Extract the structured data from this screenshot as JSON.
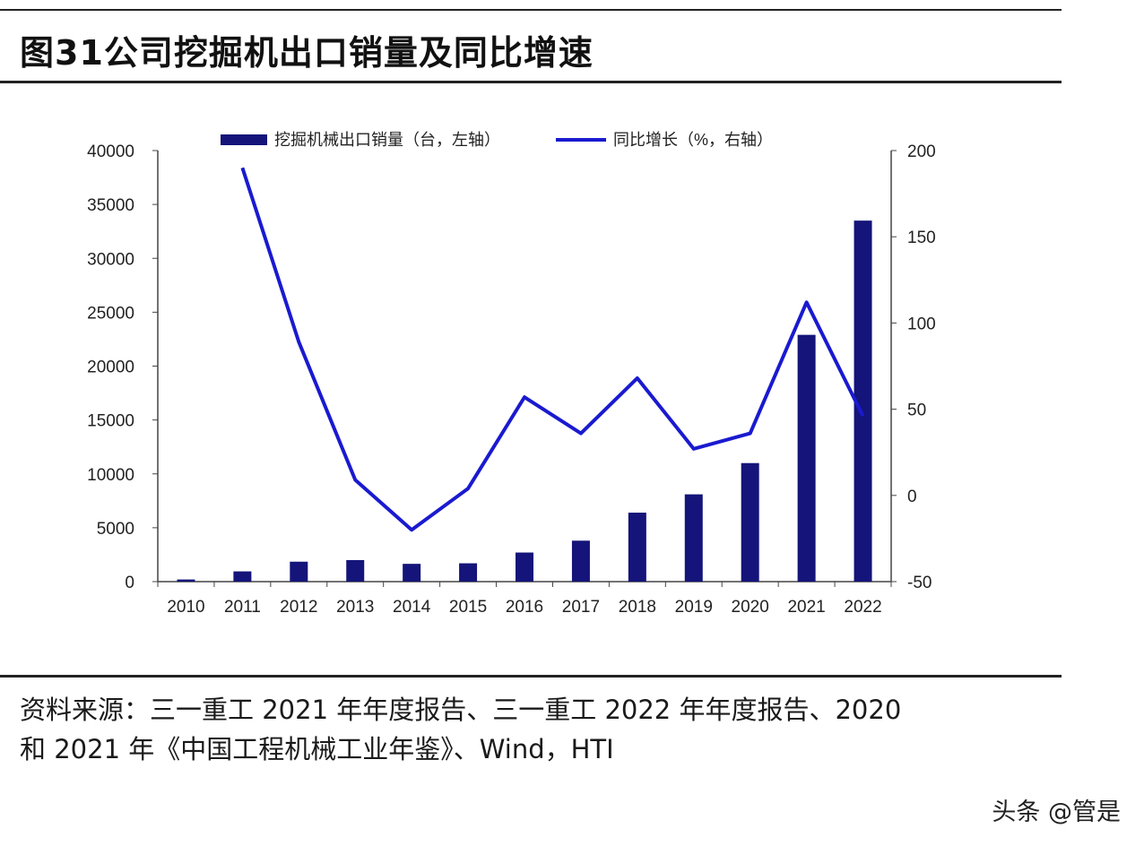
{
  "header": {
    "title": "图31公司挖掘机出口销量及同比增速"
  },
  "source": {
    "line1": "资料来源：三一重工 2021 年年度报告、三一重工 2022 年年度报告、2020",
    "line2": "和 2021 年《中国工程机械工业年鉴》、Wind，HTI"
  },
  "watermark": "头条 @管是",
  "colors": {
    "bar": "#14147a",
    "line": "#1a1ad0",
    "axis": "#444444"
  },
  "chart_data": {
    "type": "bar+line",
    "title": "",
    "categories": [
      "2010",
      "2011",
      "2012",
      "2013",
      "2014",
      "2015",
      "2016",
      "2017",
      "2018",
      "2019",
      "2020",
      "2021",
      "2022"
    ],
    "y_left": {
      "ylim": [
        0,
        40000
      ],
      "ticks": [
        0,
        5000,
        10000,
        15000,
        20000,
        25000,
        30000,
        35000,
        40000
      ]
    },
    "y_right": {
      "ylim": [
        -50,
        200
      ],
      "ticks": [
        -50,
        0,
        50,
        100,
        150,
        200
      ]
    },
    "series": [
      {
        "name": "挖掘机械出口销量（台，左轴）",
        "type": "bar",
        "axis": "left",
        "values": [
          200,
          950,
          1850,
          2000,
          1650,
          1700,
          2700,
          3800,
          6400,
          8100,
          11000,
          22900,
          33500
        ]
      },
      {
        "name": "同比增长（%，右轴）",
        "type": "line",
        "axis": "right",
        "values": [
          null,
          190,
          89,
          9,
          -20,
          4,
          57,
          36,
          68,
          27,
          36,
          112,
          46
        ]
      }
    ],
    "legend": "top-center",
    "grid": false
  }
}
